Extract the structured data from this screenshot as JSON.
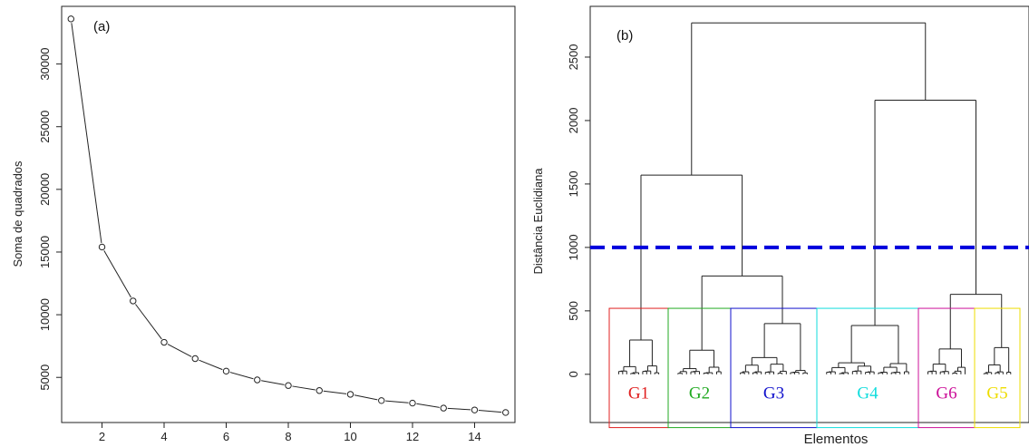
{
  "chart_data": [
    {
      "type": "line",
      "panel_label": "(a)",
      "title": "",
      "xlabel": "",
      "ylabel": "Soma de quadrados",
      "x": [
        1,
        2,
        3,
        4,
        5,
        6,
        7,
        8,
        9,
        10,
        11,
        12,
        13,
        14,
        15
      ],
      "values": [
        33600,
        15400,
        11100,
        7800,
        6500,
        5500,
        4800,
        4350,
        3950,
        3650,
        3150,
        2950,
        2550,
        2400,
        2200
      ],
      "xlim": [
        0.7,
        15.3
      ],
      "ylim": [
        1400,
        34600
      ],
      "xticks": [
        "2",
        "4",
        "6",
        "8",
        "10",
        "12",
        "14"
      ],
      "yticks": [
        "5000",
        "10000",
        "15000",
        "20000",
        "25000",
        "30000"
      ],
      "markers": "open-circle",
      "grid": false
    },
    {
      "type": "dendrogram",
      "panel_label": "(b)",
      "title": "",
      "xlabel": "Elementos",
      "ylabel": "Distância Euclidiana",
      "ylim": [
        -380,
        2900
      ],
      "yticks": [
        "0",
        "500",
        "1000",
        "1500",
        "2000",
        "2500"
      ],
      "cut_line": 1000,
      "cut_color": "#0000dd",
      "merges": [
        {
          "height": 2770,
          "left": "A",
          "right": "B"
        },
        {
          "height": 1570,
          "group": "A",
          "left": "G1",
          "right": "G2+G3"
        },
        {
          "height": 775,
          "group": "G2+G3",
          "left": "G2",
          "right": "G3"
        },
        {
          "height": 2160,
          "group": "B",
          "left": "G4",
          "right": "G6+G5"
        },
        {
          "height": 630,
          "group": "G6+G5",
          "left": "G6",
          "right": "G5"
        }
      ],
      "groups": [
        {
          "label": "G1",
          "color": "#e02020",
          "root": 270
        },
        {
          "label": "G2",
          "color": "#22aa22",
          "root": 190
        },
        {
          "label": "G3",
          "color": "#1111cc",
          "root": 400
        },
        {
          "label": "G4",
          "color": "#11dddd",
          "root": 385
        },
        {
          "label": "G6",
          "color": "#cc1199",
          "root": 200
        },
        {
          "label": "G5",
          "color": "#eedd00",
          "root": 210
        }
      ]
    }
  ]
}
